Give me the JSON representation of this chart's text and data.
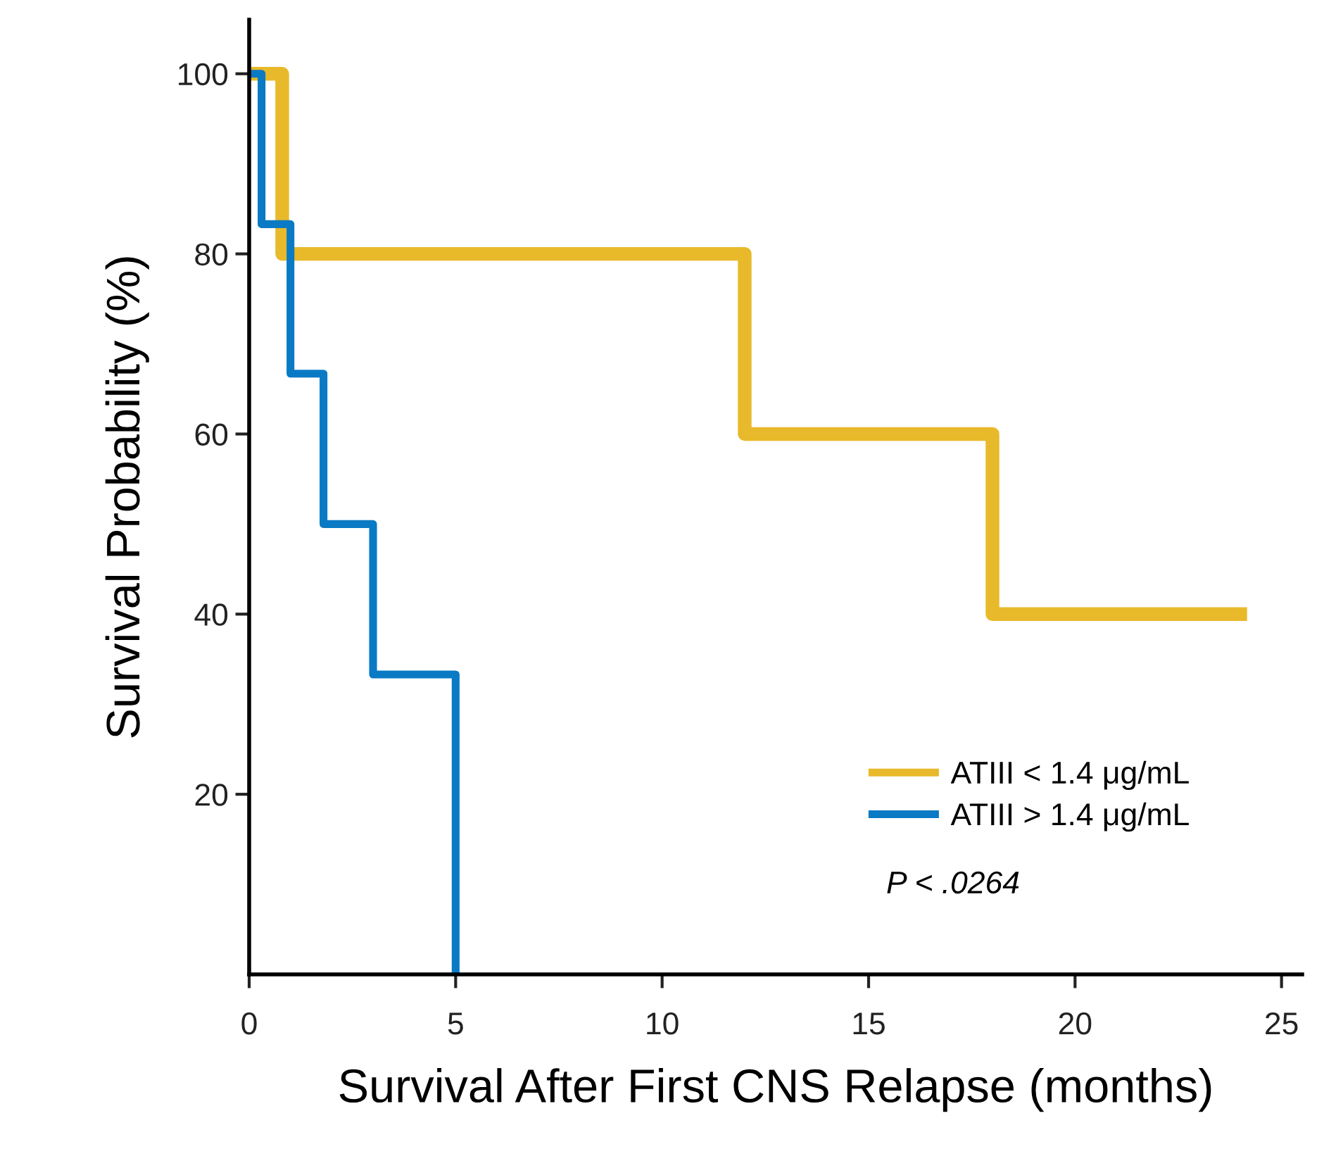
{
  "chart_data": {
    "type": "step",
    "xlabel": "Survival After First CNS Relapse (months)",
    "ylabel": "Survival Probability (%)",
    "series": [
      {
        "name": "ATIII < 1.4 μg/mL",
        "color": "#e8b92a",
        "x": [
          0,
          0.8,
          12,
          18,
          24
        ],
        "values": [
          100,
          80,
          60,
          40,
          40
        ]
      },
      {
        "name": "ATIII > 1.4 μg/mL",
        "color": "#0a7ac4",
        "x": [
          0,
          0.3,
          1.0,
          1.8,
          3.0,
          5.0
        ],
        "values": [
          100,
          83.3,
          66.7,
          50,
          33.3,
          0
        ]
      }
    ],
    "xlim": [
      0,
      25.5
    ],
    "ylim": [
      0,
      106
    ],
    "xticks": [
      0,
      5,
      10,
      15,
      20,
      25
    ],
    "yticks": [
      20,
      40,
      60,
      80,
      100
    ],
    "grid": false,
    "legend": "bottom right",
    "line_style": "solid",
    "marker": "none",
    "annotations": [
      "P < .0264"
    ]
  }
}
